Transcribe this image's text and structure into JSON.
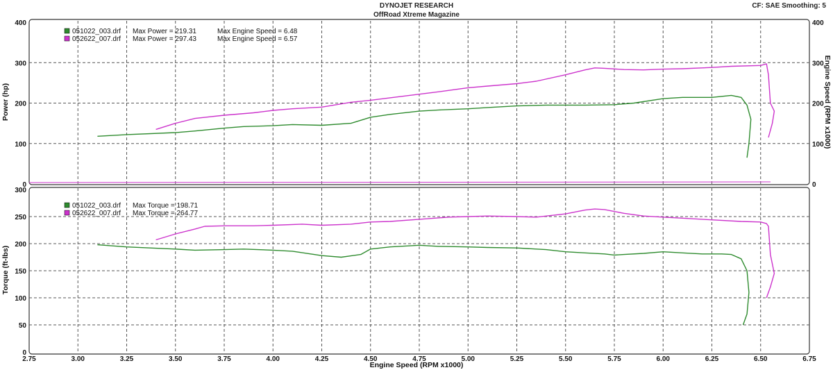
{
  "header": {
    "title": "DYNOJET RESEARCH",
    "subtitle": "OffRoad Xtreme Magazine",
    "settings": "CF: SAE  Smoothing: 5"
  },
  "colors": {
    "run1": "#2e8b2e",
    "run2": "#cc33cc",
    "grid": "#555555",
    "frame": "#333333"
  },
  "chart_data": [
    {
      "type": "line",
      "name": "power",
      "xlabel": "",
      "ylabel": "Power (hp)",
      "ylabel_right": "Engine Speed (RPM x1000)",
      "xlim": [
        2.75,
        6.75
      ],
      "ylim": [
        0,
        400
      ],
      "ylim_right": [
        0,
        400
      ],
      "x_ticks": [
        "2.75",
        "3.00",
        "3.25",
        "3.50",
        "3.75",
        "4.00",
        "4.25",
        "4.50",
        "4.75",
        "5.00",
        "5.25",
        "5.50",
        "5.75",
        "6.00",
        "6.25",
        "6.50",
        "6.75"
      ],
      "y_ticks": [
        "0",
        "100",
        "200",
        "300",
        "400"
      ],
      "y_ticks_right": [
        "0",
        "100",
        "200",
        "300",
        "400"
      ],
      "grid": true,
      "legend": [
        {
          "file": "051022_003.drf",
          "max_label": "Max Power = 219.31",
          "speed_label": "Max Engine Speed = 6.48"
        },
        {
          "file": "052622_007.drf",
          "max_label": "Max Power = 297.43",
          "speed_label": "Max Engine Speed = 6.57"
        }
      ],
      "series": [
        {
          "file": "051022_003.drf",
          "x": [
            3.1,
            3.25,
            3.5,
            3.6,
            3.75,
            3.85,
            4.0,
            4.1,
            4.25,
            4.4,
            4.5,
            4.6,
            4.75,
            4.85,
            5.0,
            5.1,
            5.25,
            5.4,
            5.5,
            5.6,
            5.75,
            5.85,
            6.0,
            6.1,
            6.25,
            6.35,
            6.4,
            6.43,
            6.45,
            6.44,
            6.43
          ],
          "y": [
            118,
            122,
            127,
            131,
            138,
            142,
            144,
            147,
            145,
            150,
            165,
            172,
            180,
            183,
            186,
            189,
            193,
            195,
            195,
            195,
            196,
            200,
            211,
            214,
            214,
            219,
            214,
            195,
            160,
            100,
            65
          ]
        },
        {
          "file": "052622_007.drf",
          "x": [
            3.4,
            3.5,
            3.6,
            3.75,
            3.9,
            4.0,
            4.1,
            4.25,
            4.4,
            4.5,
            4.6,
            4.75,
            4.85,
            5.0,
            5.1,
            5.25,
            5.35,
            5.5,
            5.6,
            5.65,
            5.7,
            5.8,
            5.9,
            6.0,
            6.1,
            6.25,
            6.35,
            6.5,
            6.53,
            6.54,
            6.55,
            6.57,
            6.56,
            6.54
          ],
          "y": [
            135,
            150,
            162,
            170,
            176,
            182,
            186,
            190,
            202,
            207,
            213,
            222,
            228,
            238,
            242,
            248,
            254,
            270,
            282,
            287,
            286,
            283,
            282,
            284,
            285,
            288,
            291,
            293,
            297,
            270,
            200,
            180,
            150,
            115
          ]
        }
      ]
    },
    {
      "type": "line",
      "name": "torque",
      "xlabel": "Engine Speed (RPM x1000)",
      "ylabel": "Torque (ft-lbs)",
      "xlim": [
        2.75,
        6.75
      ],
      "ylim": [
        0,
        300
      ],
      "x_ticks": [
        "2.75",
        "3.00",
        "3.25",
        "3.50",
        "3.75",
        "4.00",
        "4.25",
        "4.50",
        "4.75",
        "5.00",
        "5.25",
        "5.50",
        "5.75",
        "6.00",
        "6.25",
        "6.50",
        "6.75"
      ],
      "y_ticks": [
        "0",
        "50",
        "100",
        "150",
        "200",
        "250",
        "300"
      ],
      "grid": true,
      "legend": [
        {
          "file": "051022_003.drf",
          "max_label": "Max Torque = 198.71"
        },
        {
          "file": "052622_007.drf",
          "max_label": "Max Torque = 264.77"
        }
      ],
      "series": [
        {
          "file": "051022_003.drf",
          "x": [
            3.1,
            3.25,
            3.5,
            3.6,
            3.75,
            3.85,
            4.0,
            4.1,
            4.25,
            4.35,
            4.45,
            4.5,
            4.6,
            4.75,
            4.85,
            5.0,
            5.1,
            5.25,
            5.4,
            5.5,
            5.6,
            5.7,
            5.75,
            5.8,
            5.9,
            6.0,
            6.1,
            6.2,
            6.3,
            6.35,
            6.4,
            6.43,
            6.44,
            6.43,
            6.41
          ],
          "y": [
            198,
            194,
            190,
            188,
            189,
            190,
            188,
            186,
            178,
            175,
            180,
            190,
            194,
            197,
            195,
            194,
            193,
            192,
            189,
            185,
            183,
            181,
            179,
            180,
            182,
            185,
            183,
            181,
            181,
            180,
            172,
            150,
            110,
            70,
            50
          ]
        },
        {
          "file": "052622_007.drf",
          "x": [
            3.4,
            3.5,
            3.6,
            3.65,
            3.75,
            3.9,
            4.0,
            4.15,
            4.25,
            4.4,
            4.5,
            4.6,
            4.75,
            4.9,
            5.0,
            5.1,
            5.25,
            5.35,
            5.5,
            5.6,
            5.65,
            5.7,
            5.8,
            5.9,
            6.0,
            6.1,
            6.25,
            6.4,
            6.5,
            6.53,
            6.54,
            6.55,
            6.57,
            6.55,
            6.53
          ],
          "y": [
            207,
            218,
            227,
            232,
            233,
            233,
            234,
            236,
            234,
            236,
            240,
            241,
            245,
            249,
            250,
            251,
            250,
            249,
            255,
            262,
            264,
            263,
            256,
            251,
            249,
            247,
            244,
            241,
            240,
            237,
            232,
            180,
            145,
            120,
            100
          ]
        }
      ]
    }
  ]
}
